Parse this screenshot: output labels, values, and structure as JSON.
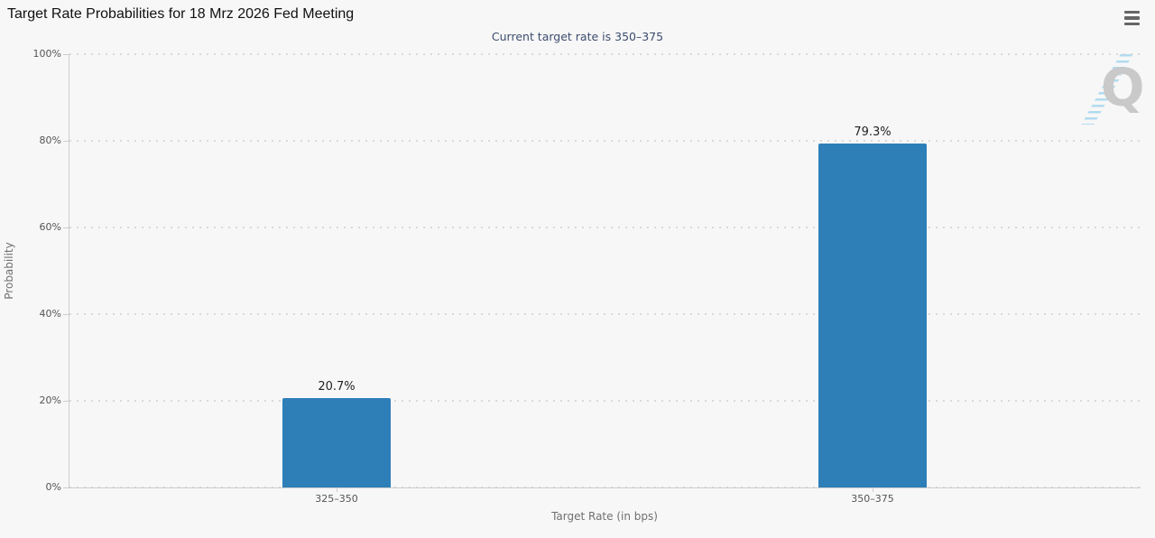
{
  "chart_data": {
    "type": "bar",
    "title": "Target Rate Probabilities for 18 Mrz 2026 Fed Meeting",
    "subtitle": "Current target rate is 350–375",
    "categories": [
      "325–350",
      "350–375"
    ],
    "values": [
      20.7,
      79.3
    ],
    "value_labels": [
      "20.7%",
      "79.3%"
    ],
    "xlabel": "Target Rate (in bps)",
    "ylabel": "Probability",
    "ylim": [
      0,
      100
    ],
    "yticks": [
      0,
      20,
      40,
      60,
      80,
      100
    ],
    "ytick_labels": [
      "0%",
      "20%",
      "40%",
      "60%",
      "80%",
      "100%"
    ],
    "grid": "dotted-horizontal",
    "legend": "none"
  },
  "menu": {
    "icon": "hamburger-menu-icon"
  },
  "watermark": {
    "letter": "Q"
  },
  "colors": {
    "background": "#f7f7f7",
    "title": "#111111",
    "subtitle": "#3c4d6e",
    "bar": "#2e7fb8",
    "datalabel": "#222222",
    "axis": "#cccccc",
    "grid": "#d9d9d9",
    "ticktext": "#555555",
    "axistitle": "#707070",
    "menu": "#666666",
    "watermark": "#c9c9c9",
    "stripe": "rgba(130,200,235,0.6)"
  }
}
